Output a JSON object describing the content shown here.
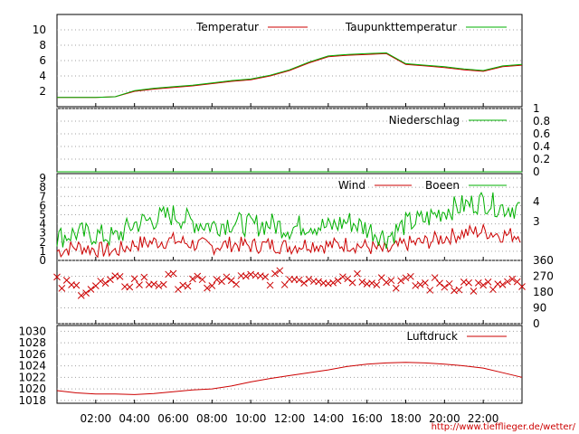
{
  "credit": "http://www.tiefflieger.de/wetter/",
  "x_tick_labels": [
    "02:00",
    "04:00",
    "06:00",
    "08:00",
    "10:00",
    "12:00",
    "14:00",
    "16:00",
    "18:00",
    "20:00",
    "22:00"
  ],
  "colors": {
    "red": "#cc0000",
    "green": "#00b000",
    "grid": "#a0a0a0"
  },
  "chart_data": [
    {
      "type": "line",
      "panel": "temperature",
      "legend": [
        "Temperatur",
        "Taupunkttemperatur"
      ],
      "ylim": [
        0,
        12
      ],
      "y_ticks": [
        2,
        4,
        6,
        8,
        10
      ],
      "x": [
        0,
        1,
        2,
        3,
        4,
        5,
        6,
        7,
        8,
        9,
        10,
        11,
        12,
        13,
        14,
        15,
        16,
        17,
        18,
        19,
        20,
        21,
        22,
        23,
        24
      ],
      "series": [
        {
          "name": "Temperatur",
          "color": "#cc0000",
          "values": [
            1.2,
            1.2,
            1.2,
            1.3,
            2.0,
            2.3,
            2.5,
            2.7,
            3.0,
            3.3,
            3.5,
            4.0,
            4.7,
            5.7,
            6.5,
            6.7,
            6.8,
            6.9,
            5.5,
            5.3,
            5.1,
            4.8,
            4.6,
            5.2,
            5.4
          ]
        },
        {
          "name": "Taupunkttemperatur",
          "color": "#00b000",
          "values": [
            1.2,
            1.2,
            1.2,
            1.3,
            2.1,
            2.4,
            2.6,
            2.8,
            3.1,
            3.4,
            3.6,
            4.1,
            4.8,
            5.8,
            6.6,
            6.8,
            6.9,
            7.0,
            5.6,
            5.4,
            5.2,
            4.9,
            4.7,
            5.3,
            5.5
          ]
        }
      ]
    },
    {
      "type": "line",
      "panel": "precipitation",
      "legend": [
        "Niederschlag"
      ],
      "ylim": [
        0,
        1
      ],
      "y_ticks": [
        0,
        0.2,
        0.4,
        0.6,
        0.8,
        1
      ],
      "x": [
        0,
        24
      ],
      "series": [
        {
          "name": "Niederschlag",
          "color": "#00b000",
          "values": [
            0,
            0
          ]
        }
      ]
    },
    {
      "type": "line",
      "panel": "wind",
      "legend": [
        "Wind",
        "Boeen"
      ],
      "ylim": [
        0,
        9.5
      ],
      "y_ticks": [
        0,
        1,
        2,
        3,
        4,
        5,
        6,
        7,
        8,
        9
      ],
      "y2_ticks": [
        3,
        4
      ],
      "x": [
        0,
        1,
        2,
        3,
        4,
        5,
        6,
        7,
        8,
        9,
        10,
        11,
        12,
        13,
        14,
        15,
        16,
        17,
        18,
        19,
        20,
        21,
        22,
        23,
        24
      ],
      "series": [
        {
          "name": "Wind",
          "color": "#cc0000",
          "values": [
            1.0,
            1.5,
            1.2,
            1.0,
            1.8,
            2.0,
            2.2,
            1.8,
            1.5,
            1.8,
            1.6,
            1.7,
            1.5,
            1.8,
            1.6,
            1.8,
            1.5,
            1.0,
            1.8,
            2.0,
            2.5,
            3.0,
            3.2,
            2.8,
            2.8
          ]
        },
        {
          "name": "Boeen",
          "color": "#00b000",
          "values": [
            2.5,
            3.0,
            2.8,
            2.5,
            4.0,
            4.5,
            5.0,
            4.2,
            3.8,
            4.2,
            3.8,
            4.0,
            3.5,
            4.0,
            3.6,
            4.3,
            3.5,
            2.5,
            4.0,
            4.5,
            5.5,
            6.0,
            6.5,
            5.8,
            5.8
          ]
        }
      ]
    },
    {
      "type": "scatter",
      "panel": "wind-direction",
      "ylim": [
        0,
        360
      ],
      "y_ticks": [
        0,
        90,
        180,
        270,
        360
      ],
      "marker": "x",
      "x": [
        0,
        1,
        2,
        3,
        4,
        5,
        6,
        7,
        8,
        9,
        10,
        11,
        12,
        13,
        14,
        15,
        16,
        17,
        18,
        19,
        20,
        21,
        22,
        23,
        24
      ],
      "series": [
        {
          "name": "",
          "color": "#cc0000",
          "values": [
            225,
            200,
            215,
            230,
            240,
            235,
            245,
            225,
            230,
            240,
            250,
            260,
            255,
            265,
            260,
            270,
            265,
            250,
            230,
            220,
            230,
            225,
            200,
            215,
            220
          ]
        }
      ]
    },
    {
      "type": "line",
      "panel": "pressure",
      "legend": [
        "Luftdruck"
      ],
      "ylim": [
        1017.5,
        1031
      ],
      "y_ticks": [
        1018,
        1020,
        1022,
        1024,
        1026,
        1028,
        1030
      ],
      "x": [
        0,
        1,
        2,
        3,
        4,
        5,
        6,
        7,
        8,
        9,
        10,
        11,
        12,
        13,
        14,
        15,
        16,
        17,
        18,
        19,
        20,
        21,
        22,
        23,
        24
      ],
      "series": [
        {
          "name": "Luftdruck",
          "color": "#cc0000",
          "values": [
            1019.7,
            1019.3,
            1019.1,
            1019.1,
            1019.0,
            1019.2,
            1019.5,
            1019.8,
            1020.0,
            1020.5,
            1021.2,
            1021.8,
            1022.3,
            1022.8,
            1023.3,
            1023.9,
            1024.3,
            1024.5,
            1024.6,
            1024.5,
            1024.3,
            1024.0,
            1023.6,
            1022.8,
            1022.0
          ]
        }
      ]
    }
  ]
}
